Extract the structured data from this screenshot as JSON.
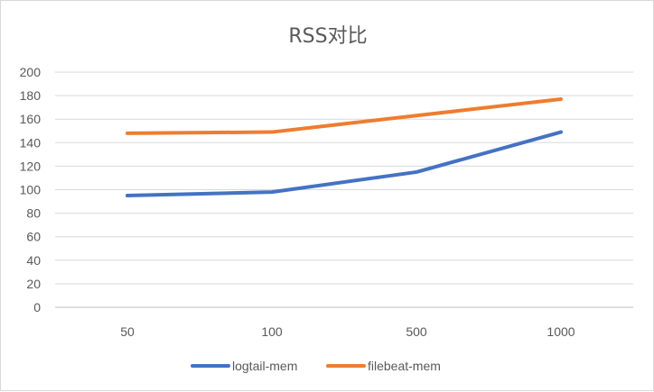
{
  "chart_data": {
    "type": "line",
    "title": "RSS对比",
    "xlabel": "",
    "ylabel": "",
    "categories": [
      "50",
      "100",
      "500",
      "1000"
    ],
    "ylim": [
      0,
      200
    ],
    "yticks": [
      0,
      20,
      40,
      60,
      80,
      100,
      120,
      140,
      160,
      180,
      200
    ],
    "grid": true,
    "legend_position": "bottom",
    "series": [
      {
        "name": "logtail-mem",
        "color": "#4472c4",
        "values": [
          95,
          98,
          115,
          149
        ]
      },
      {
        "name": "filebeat-mem",
        "color": "#ed7d31",
        "values": [
          148,
          149,
          163,
          177
        ]
      }
    ]
  }
}
